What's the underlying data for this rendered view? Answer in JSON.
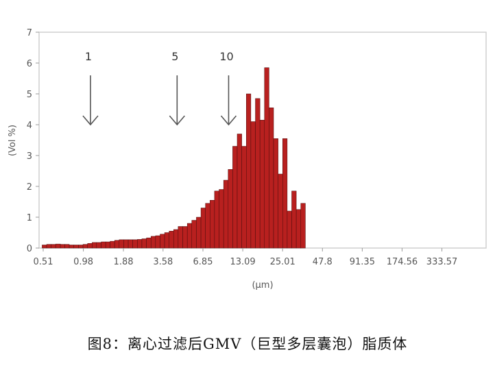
{
  "chart_data": {
    "type": "bar",
    "xlabel": "(µm)",
    "ylabel": "(Vol %)",
    "ylim": [
      0,
      7
    ],
    "y_ticks": [
      0,
      1,
      2,
      3,
      4,
      5,
      6,
      7
    ],
    "x_ticks": [
      "0.51",
      "0.98",
      "1.88",
      "3.58",
      "6.85",
      "13.09",
      "25.01",
      "47.8",
      "91.35",
      "174.56",
      "333.57"
    ],
    "x_range_log": [
      0.51,
      640
    ],
    "grid": false,
    "bar_color": "#b8201f",
    "bins": [
      {
        "x": 0.52,
        "v": 0.1
      },
      {
        "x": 0.56,
        "v": 0.12
      },
      {
        "x": 0.6,
        "v": 0.12
      },
      {
        "x": 0.65,
        "v": 0.13
      },
      {
        "x": 0.7,
        "v": 0.12
      },
      {
        "x": 0.75,
        "v": 0.12
      },
      {
        "x": 0.81,
        "v": 0.1
      },
      {
        "x": 0.87,
        "v": 0.1
      },
      {
        "x": 0.94,
        "v": 0.1
      },
      {
        "x": 1.01,
        "v": 0.12
      },
      {
        "x": 1.09,
        "v": 0.15
      },
      {
        "x": 1.17,
        "v": 0.18
      },
      {
        "x": 1.26,
        "v": 0.18
      },
      {
        "x": 1.36,
        "v": 0.2
      },
      {
        "x": 1.46,
        "v": 0.2
      },
      {
        "x": 1.57,
        "v": 0.22
      },
      {
        "x": 1.69,
        "v": 0.25
      },
      {
        "x": 1.82,
        "v": 0.27
      },
      {
        "x": 1.96,
        "v": 0.27
      },
      {
        "x": 2.11,
        "v": 0.27
      },
      {
        "x": 2.27,
        "v": 0.27
      },
      {
        "x": 2.45,
        "v": 0.28
      },
      {
        "x": 2.63,
        "v": 0.3
      },
      {
        "x": 2.84,
        "v": 0.33
      },
      {
        "x": 3.05,
        "v": 0.38
      },
      {
        "x": 3.29,
        "v": 0.4
      },
      {
        "x": 3.54,
        "v": 0.45
      },
      {
        "x": 3.81,
        "v": 0.5
      },
      {
        "x": 4.1,
        "v": 0.55
      },
      {
        "x": 4.41,
        "v": 0.6
      },
      {
        "x": 4.75,
        "v": 0.7
      },
      {
        "x": 5.12,
        "v": 0.7
      },
      {
        "x": 5.51,
        "v": 0.8
      },
      {
        "x": 5.93,
        "v": 0.9
      },
      {
        "x": 6.39,
        "v": 1.0
      },
      {
        "x": 6.88,
        "v": 1.3
      },
      {
        "x": 7.4,
        "v": 1.45
      },
      {
        "x": 7.97,
        "v": 1.55
      },
      {
        "x": 8.58,
        "v": 1.85
      },
      {
        "x": 9.24,
        "v": 1.9
      },
      {
        "x": 9.95,
        "v": 2.2
      },
      {
        "x": 10.71,
        "v": 2.55
      },
      {
        "x": 11.53,
        "v": 3.3
      },
      {
        "x": 12.41,
        "v": 3.7
      },
      {
        "x": 13.36,
        "v": 3.3
      },
      {
        "x": 14.39,
        "v": 5.0
      },
      {
        "x": 15.49,
        "v": 4.1
      },
      {
        "x": 16.68,
        "v": 4.85
      },
      {
        "x": 17.96,
        "v": 4.15
      },
      {
        "x": 19.33,
        "v": 5.85
      },
      {
        "x": 20.82,
        "v": 4.55
      },
      {
        "x": 22.41,
        "v": 3.55
      },
      {
        "x": 24.13,
        "v": 2.4
      },
      {
        "x": 25.98,
        "v": 3.55
      },
      {
        "x": 27.97,
        "v": 1.2
      },
      {
        "x": 30.11,
        "v": 1.85
      },
      {
        "x": 32.42,
        "v": 1.25
      },
      {
        "x": 34.91,
        "v": 1.45
      }
    ],
    "annotations": [
      {
        "label": "1",
        "x": 1.1,
        "y_top": 5.6,
        "y_bottom": 4.0
      },
      {
        "label": "5",
        "x": 4.5,
        "y_top": 5.6,
        "y_bottom": 4.0
      },
      {
        "label": "10",
        "x": 10.4,
        "y_top": 5.6,
        "y_bottom": 4.0
      }
    ]
  },
  "caption": "图8：离心过滤后GMV（巨型多层囊泡）脂质体"
}
